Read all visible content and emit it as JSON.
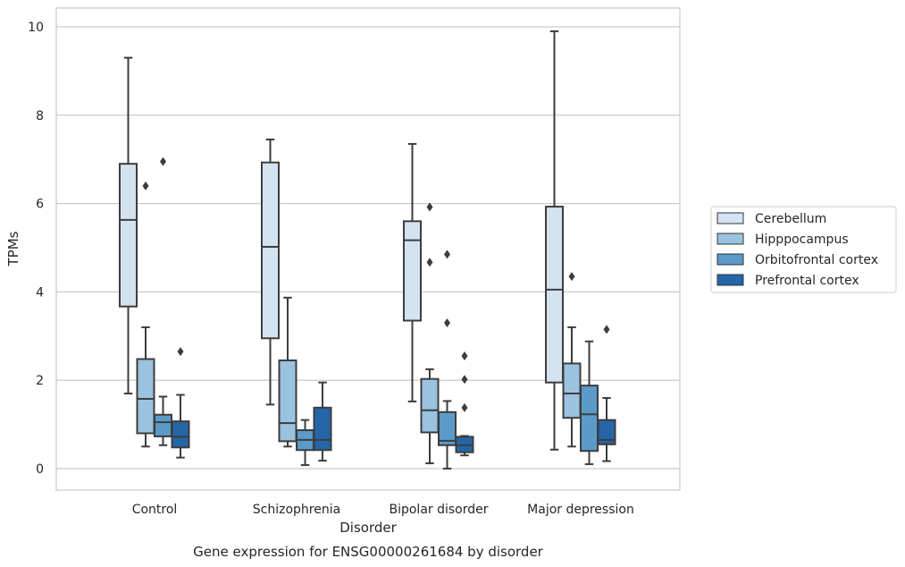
{
  "chart_data": {
    "type": "boxplot",
    "title": "Gene expression for ENSG00000261684 by disorder",
    "xlabel": "Disorder",
    "ylabel": "TPMs",
    "ylim": [
      -0.45,
      10.4
    ],
    "yticks": [
      0,
      2,
      4,
      6,
      8,
      10
    ],
    "grid": true,
    "legend_position": "right",
    "categories": [
      "Control",
      "Schizophrenia",
      "Bipolar disorder",
      "Major depression"
    ],
    "series": [
      {
        "name": "Cerebellum",
        "color": "#d4e3f2",
        "boxes": [
          {
            "whislo": 1.7,
            "q1": 3.67,
            "med": 5.63,
            "q3": 6.9,
            "whishi": 9.3,
            "fliers": []
          },
          {
            "whislo": 1.45,
            "q1": 2.95,
            "med": 5.02,
            "q3": 6.93,
            "whishi": 7.45,
            "fliers": []
          },
          {
            "whislo": 1.52,
            "q1": 3.35,
            "med": 5.17,
            "q3": 5.6,
            "whishi": 7.35,
            "fliers": []
          },
          {
            "whislo": 0.43,
            "q1": 1.95,
            "med": 4.05,
            "q3": 5.93,
            "whishi": 9.9,
            "fliers": []
          }
        ]
      },
      {
        "name": "Hipppocampus",
        "color": "#9ac3df",
        "boxes": [
          {
            "whislo": 0.5,
            "q1": 0.8,
            "med": 1.58,
            "q3": 2.48,
            "whishi": 3.2,
            "fliers": [
              6.4
            ]
          },
          {
            "whislo": 0.5,
            "q1": 0.62,
            "med": 1.03,
            "q3": 2.45,
            "whishi": 3.87,
            "fliers": []
          },
          {
            "whislo": 0.12,
            "q1": 0.82,
            "med": 1.32,
            "q3": 2.03,
            "whishi": 2.25,
            "fliers": [
              5.92,
              4.67
            ]
          },
          {
            "whislo": 0.5,
            "q1": 1.15,
            "med": 1.7,
            "q3": 2.38,
            "whishi": 3.2,
            "fliers": [
              4.35
            ]
          }
        ]
      },
      {
        "name": "Orbitofrontal cortex",
        "color": "#5a9bc9",
        "boxes": [
          {
            "whislo": 0.53,
            "q1": 0.73,
            "med": 1.05,
            "q3": 1.22,
            "whishi": 1.63,
            "fliers": [
              6.95
            ]
          },
          {
            "whislo": 0.08,
            "q1": 0.42,
            "med": 0.65,
            "q3": 0.87,
            "whishi": 1.1,
            "fliers": []
          },
          {
            "whislo": 0.0,
            "q1": 0.53,
            "med": 0.63,
            "q3": 1.28,
            "whishi": 1.53,
            "fliers": [
              4.85,
              3.3
            ]
          },
          {
            "whislo": 0.1,
            "q1": 0.4,
            "med": 1.23,
            "q3": 1.88,
            "whishi": 2.88,
            "fliers": []
          }
        ]
      },
      {
        "name": "Prefrontal cortex",
        "color": "#2466a8",
        "boxes": [
          {
            "whislo": 0.25,
            "q1": 0.48,
            "med": 0.72,
            "q3": 1.07,
            "whishi": 1.67,
            "fliers": [
              2.65
            ]
          },
          {
            "whislo": 0.18,
            "q1": 0.42,
            "med": 0.65,
            "q3": 1.38,
            "whishi": 1.95,
            "fliers": []
          },
          {
            "whislo": 0.3,
            "q1": 0.37,
            "med": 0.53,
            "q3": 0.72,
            "whishi": 0.74,
            "fliers": [
              2.55,
              2.02,
              1.38
            ]
          },
          {
            "whislo": 0.17,
            "q1": 0.55,
            "med": 0.65,
            "q3": 1.1,
            "whishi": 1.6,
            "fliers": [
              3.15
            ]
          }
        ]
      }
    ]
  }
}
